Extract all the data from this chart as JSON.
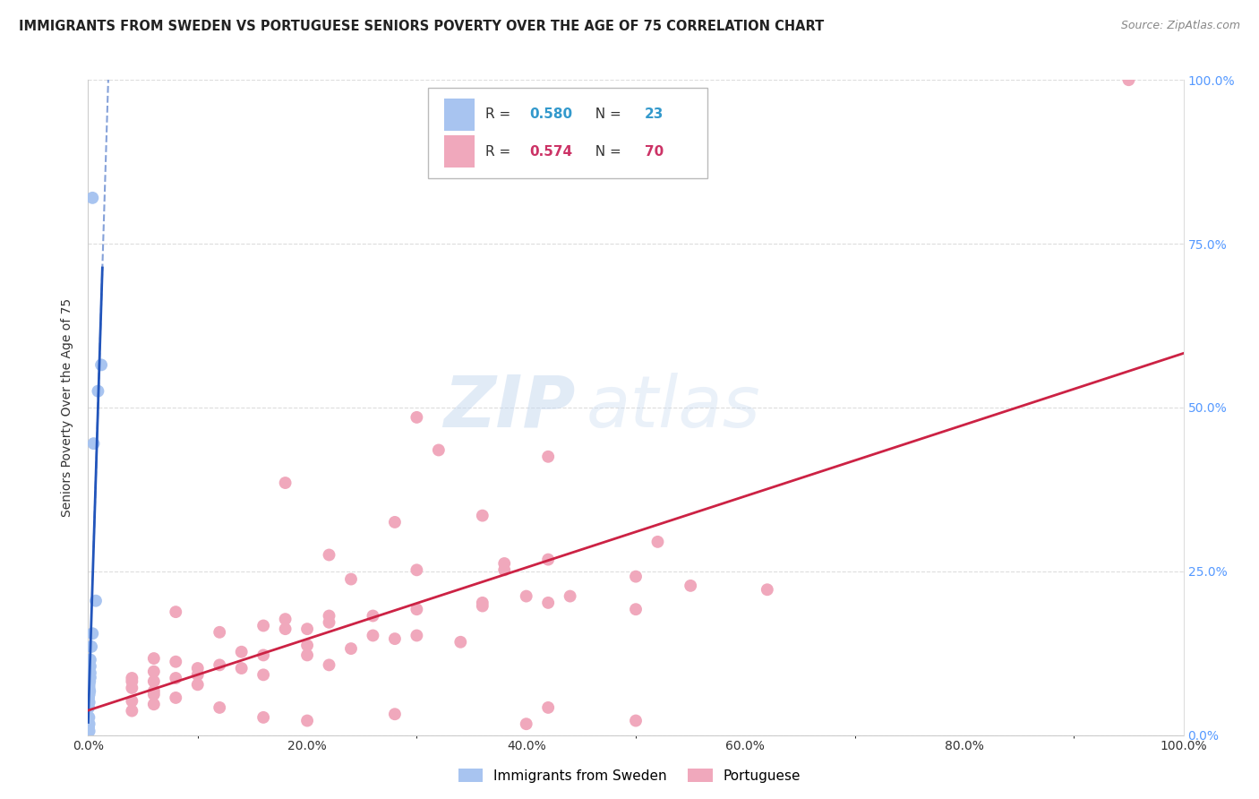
{
  "title": "IMMIGRANTS FROM SWEDEN VS PORTUGUESE SENIORS POVERTY OVER THE AGE OF 75 CORRELATION CHART",
  "source": "Source: ZipAtlas.com",
  "ylabel": "Seniors Poverty Over the Age of 75",
  "xlim": [
    0,
    1.0
  ],
  "ylim": [
    0,
    1.0
  ],
  "xtick_labels": [
    "0.0%",
    "",
    "20.0%",
    "",
    "40.0%",
    "",
    "60.0%",
    "",
    "80.0%",
    "",
    "100.0%"
  ],
  "xtick_vals": [
    0.0,
    0.1,
    0.2,
    0.3,
    0.4,
    0.5,
    0.6,
    0.7,
    0.8,
    0.9,
    1.0
  ],
  "ytick_vals": [
    0.0,
    0.25,
    0.5,
    0.75,
    1.0
  ],
  "right_ytick_labels": [
    "0.0%",
    "25.0%",
    "50.0%",
    "75.0%",
    "100.0%"
  ],
  "sweden_color": "#a8c4f0",
  "portuguese_color": "#f0a8bc",
  "sweden_line_color": "#2255bb",
  "portuguese_line_color": "#cc2244",
  "legend_sweden_R": "0.580",
  "legend_sweden_N": "23",
  "legend_portuguese_R": "0.574",
  "legend_portuguese_N": "70",
  "watermark_zip": "ZIP",
  "watermark_atlas": "atlas",
  "sweden_points": [
    [
      0.004,
      0.82
    ],
    [
      0.012,
      0.565
    ],
    [
      0.009,
      0.525
    ],
    [
      0.005,
      0.445
    ],
    [
      0.007,
      0.205
    ],
    [
      0.004,
      0.155
    ],
    [
      0.003,
      0.135
    ],
    [
      0.002,
      0.115
    ],
    [
      0.002,
      0.105
    ],
    [
      0.002,
      0.095
    ],
    [
      0.002,
      0.088
    ],
    [
      0.0015,
      0.082
    ],
    [
      0.001,
      0.077
    ],
    [
      0.001,
      0.072
    ],
    [
      0.0015,
      0.067
    ],
    [
      0.001,
      0.062
    ],
    [
      0.0005,
      0.057
    ],
    [
      0.001,
      0.05
    ],
    [
      0.0005,
      0.042
    ],
    [
      0.0008,
      0.027
    ],
    [
      0.001,
      0.017
    ],
    [
      0.0005,
      0.012
    ],
    [
      0.001,
      0.006
    ]
  ],
  "portuguese_points": [
    [
      0.95,
      1.0
    ],
    [
      0.3,
      0.485
    ],
    [
      0.32,
      0.435
    ],
    [
      0.42,
      0.425
    ],
    [
      0.18,
      0.385
    ],
    [
      0.36,
      0.335
    ],
    [
      0.28,
      0.325
    ],
    [
      0.52,
      0.295
    ],
    [
      0.22,
      0.275
    ],
    [
      0.42,
      0.268
    ],
    [
      0.38,
      0.262
    ],
    [
      0.38,
      0.252
    ],
    [
      0.3,
      0.252
    ],
    [
      0.5,
      0.242
    ],
    [
      0.24,
      0.238
    ],
    [
      0.55,
      0.228
    ],
    [
      0.62,
      0.222
    ],
    [
      0.44,
      0.212
    ],
    [
      0.4,
      0.212
    ],
    [
      0.36,
      0.202
    ],
    [
      0.42,
      0.202
    ],
    [
      0.36,
      0.197
    ],
    [
      0.3,
      0.192
    ],
    [
      0.5,
      0.192
    ],
    [
      0.08,
      0.188
    ],
    [
      0.26,
      0.182
    ],
    [
      0.22,
      0.182
    ],
    [
      0.18,
      0.177
    ],
    [
      0.22,
      0.172
    ],
    [
      0.16,
      0.167
    ],
    [
      0.18,
      0.162
    ],
    [
      0.2,
      0.162
    ],
    [
      0.12,
      0.157
    ],
    [
      0.26,
      0.152
    ],
    [
      0.3,
      0.152
    ],
    [
      0.28,
      0.147
    ],
    [
      0.34,
      0.142
    ],
    [
      0.2,
      0.137
    ],
    [
      0.24,
      0.132
    ],
    [
      0.14,
      0.127
    ],
    [
      0.16,
      0.122
    ],
    [
      0.2,
      0.122
    ],
    [
      0.06,
      0.117
    ],
    [
      0.08,
      0.112
    ],
    [
      0.12,
      0.107
    ],
    [
      0.22,
      0.107
    ],
    [
      0.1,
      0.102
    ],
    [
      0.14,
      0.102
    ],
    [
      0.06,
      0.097
    ],
    [
      0.1,
      0.092
    ],
    [
      0.16,
      0.092
    ],
    [
      0.04,
      0.087
    ],
    [
      0.08,
      0.087
    ],
    [
      0.04,
      0.082
    ],
    [
      0.06,
      0.082
    ],
    [
      0.1,
      0.077
    ],
    [
      0.04,
      0.072
    ],
    [
      0.06,
      0.067
    ],
    [
      0.06,
      0.062
    ],
    [
      0.08,
      0.057
    ],
    [
      0.04,
      0.052
    ],
    [
      0.06,
      0.047
    ],
    [
      0.12,
      0.042
    ],
    [
      0.42,
      0.042
    ],
    [
      0.04,
      0.037
    ],
    [
      0.28,
      0.032
    ],
    [
      0.16,
      0.027
    ],
    [
      0.2,
      0.022
    ],
    [
      0.5,
      0.022
    ],
    [
      0.4,
      0.017
    ]
  ]
}
